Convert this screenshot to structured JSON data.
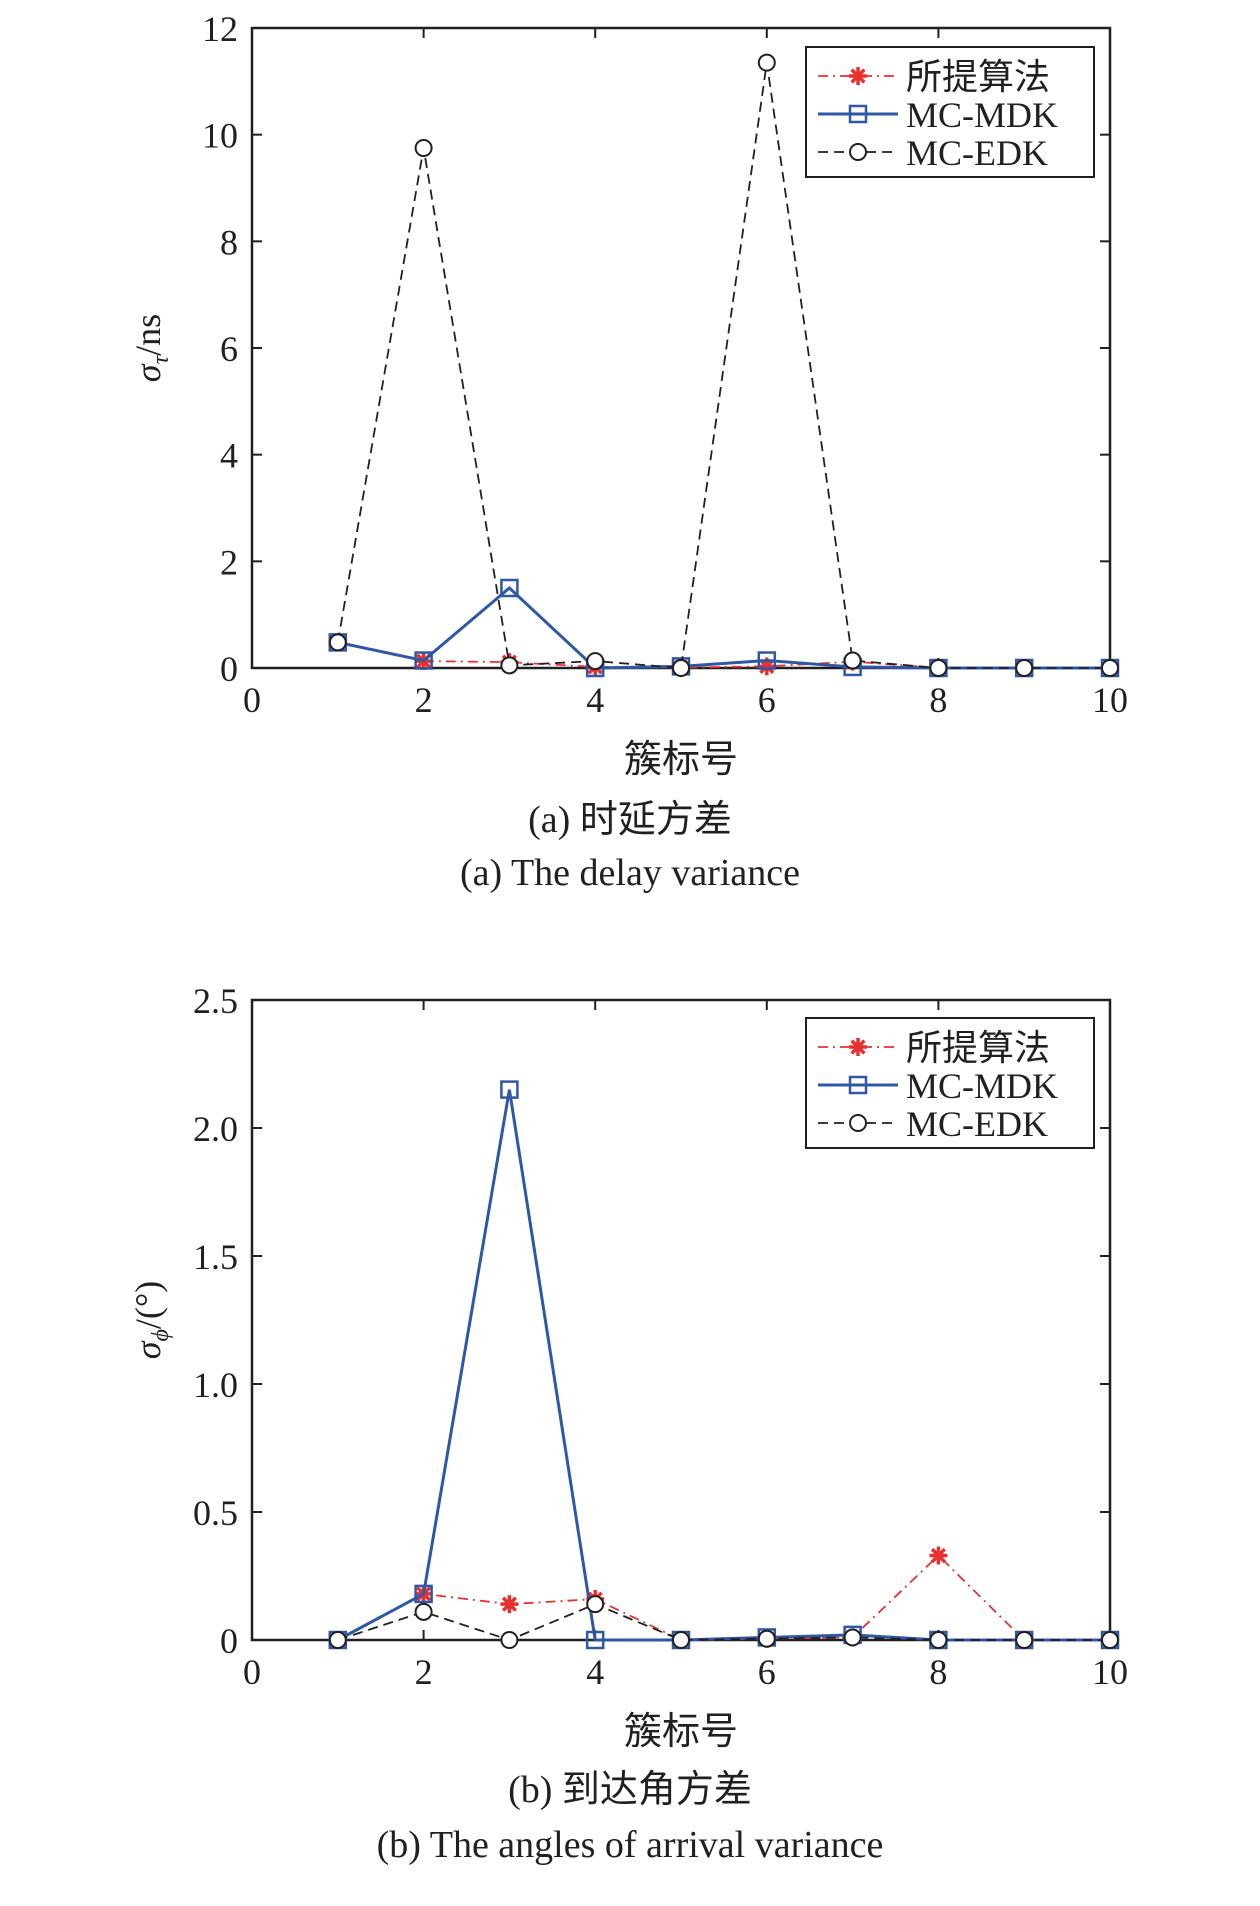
{
  "chart_data": [
    {
      "type": "line",
      "caption_cn": "(a) 时延方差",
      "caption_en": "(a) The delay variance",
      "xlabel": "簇标号",
      "ylabel_symbol": "σ",
      "ylabel_sub": "τ",
      "ylabel_unit": "/ns",
      "xlim": [
        0,
        10
      ],
      "ylim": [
        0,
        12
      ],
      "xticks": [
        0,
        2,
        4,
        6,
        8,
        10
      ],
      "yticks": [
        0,
        2,
        4,
        6,
        8,
        10,
        12
      ],
      "ytick_labels": [
        "0",
        "2",
        "4",
        "6",
        "8",
        "10",
        "12"
      ],
      "legend_position": "top-right",
      "x": [
        1,
        2,
        3,
        4,
        5,
        6,
        7,
        8,
        9,
        10
      ],
      "series": [
        {
          "name": "所提算法",
          "color": "#e8312f",
          "line": "dashdot",
          "marker": "star",
          "values": [
            0.48,
            0.13,
            0.11,
            0.02,
            0.01,
            0.03,
            0.12,
            0.0,
            0.0,
            0.0
          ]
        },
        {
          "name": "MC-MDK",
          "color": "#2e58a6",
          "line": "solid",
          "marker": "square",
          "values": [
            0.48,
            0.14,
            1.5,
            0.0,
            0.03,
            0.14,
            0.02,
            0.0,
            0.0,
            0.0
          ]
        },
        {
          "name": "MC-EDK",
          "color": "#231f20",
          "line": "dashed",
          "marker": "circle",
          "values": [
            0.48,
            9.75,
            0.05,
            0.13,
            0.0,
            11.35,
            0.14,
            0.0,
            0.0,
            0.0
          ]
        }
      ]
    },
    {
      "type": "line",
      "caption_cn": "(b) 到达角方差",
      "caption_en": "(b) The angles of arrival variance",
      "xlabel": "簇标号",
      "ylabel_symbol": "σ",
      "ylabel_sub": "ϕ",
      "ylabel_unit": "/(°)",
      "xlim": [
        0,
        10
      ],
      "ylim": [
        0,
        2.5
      ],
      "xticks": [
        0,
        2,
        4,
        6,
        8,
        10
      ],
      "yticks": [
        0,
        0.5,
        1.0,
        1.5,
        2.0,
        2.5
      ],
      "ytick_labels": [
        "0",
        "0.5",
        "1.0",
        "1.5",
        "2.0",
        "2.5"
      ],
      "legend_position": "top-right",
      "x": [
        1,
        2,
        3,
        4,
        5,
        6,
        7,
        8,
        9,
        10
      ],
      "series": [
        {
          "name": "所提算法",
          "color": "#e8312f",
          "line": "dashdot",
          "marker": "star",
          "values": [
            0.0,
            0.18,
            0.14,
            0.16,
            0.0,
            0.005,
            0.01,
            0.33,
            0.0,
            0.0
          ]
        },
        {
          "name": "MC-MDK",
          "color": "#2e58a6",
          "line": "solid",
          "marker": "square",
          "values": [
            0.0,
            0.18,
            2.15,
            0.0,
            0.0,
            0.01,
            0.02,
            0.0,
            0.0,
            0.0
          ]
        },
        {
          "name": "MC-EDK",
          "color": "#231f20",
          "line": "dashed",
          "marker": "circle",
          "values": [
            0.0,
            0.11,
            0.0,
            0.14,
            0.0,
            0.005,
            0.01,
            0.0,
            0.0,
            0.0
          ]
        }
      ]
    }
  ]
}
